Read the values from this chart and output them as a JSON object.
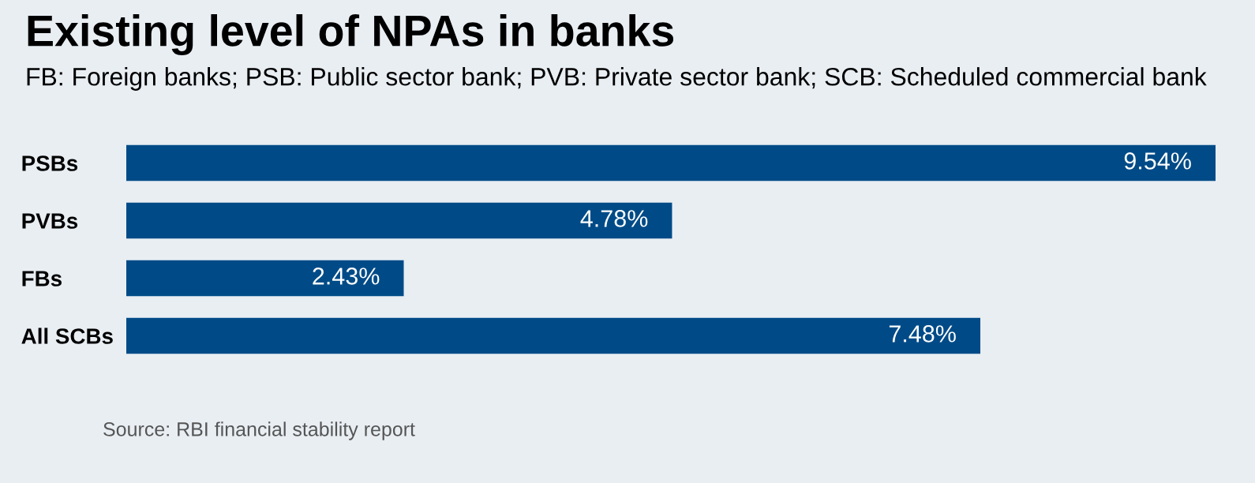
{
  "chart_data": {
    "type": "bar",
    "orientation": "horizontal",
    "title": "Existing level of NPAs in banks",
    "subtitle": "FB: Foreign banks; PSB: Public sector bank; PVB: Private sector bank; SCB: Scheduled commercial bank",
    "categories": [
      "PSBs",
      "PVBs",
      "FBs",
      "All SCBs"
    ],
    "values": [
      9.54,
      4.78,
      2.43,
      7.48
    ],
    "value_labels": [
      "9.54%",
      "4.78%",
      "2.43%",
      "7.48%"
    ],
    "color": "#004b87",
    "grid": false,
    "legend": false,
    "annotations": [
      "Source: RBI financial stability report"
    ]
  }
}
